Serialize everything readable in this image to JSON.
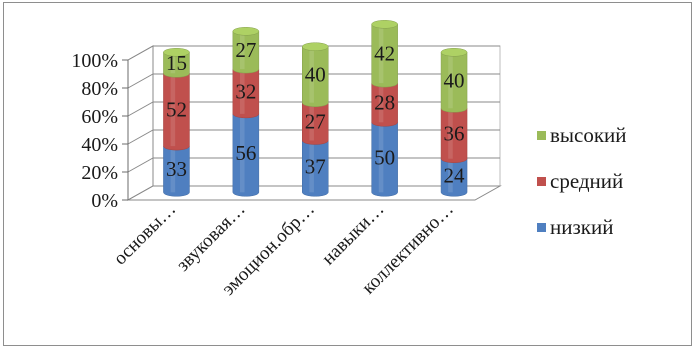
{
  "chart_data": {
    "type": "bar",
    "stacked": "percent",
    "three_d": true,
    "categories": [
      "основы…",
      "звуковая…",
      "эмоцион.обр…",
      "навыки…",
      "коллективно…"
    ],
    "series": [
      {
        "name": "низкий",
        "values": [
          33,
          56,
          37,
          50,
          24
        ],
        "color": "#4f7fc0"
      },
      {
        "name": "средний",
        "values": [
          52,
          32,
          27,
          28,
          36
        ],
        "color": "#c0504d"
      },
      {
        "name": "высокий",
        "values": [
          15,
          27,
          40,
          42,
          40
        ],
        "color": "#9bbb59"
      }
    ],
    "y_ticks": [
      "0%",
      "20%",
      "40%",
      "60%",
      "80%",
      "100%"
    ],
    "ylim": [
      0,
      100
    ],
    "grid": true,
    "legend_position": "right",
    "legend_order": [
      "высокий",
      "средний",
      "низкий"
    ]
  }
}
